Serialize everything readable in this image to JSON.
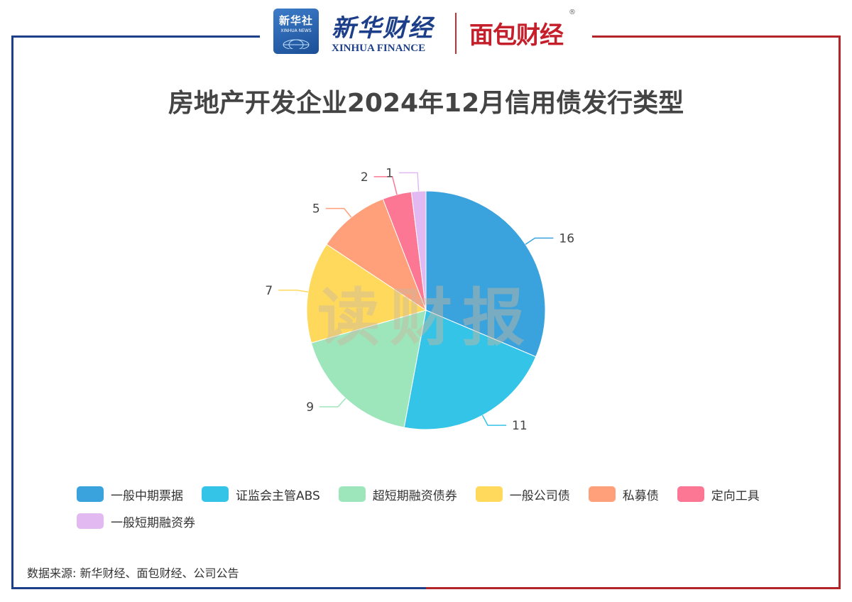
{
  "header": {
    "xinhua_badge_cn": "新华社",
    "xinhua_badge_en": "XINHUA NEWS",
    "xinhua_finance_cn": "新华财经",
    "xinhua_finance_en": "XINHUA FINANCE",
    "mianbao_logo": "面包财经",
    "registered_mark": "®"
  },
  "colors": {
    "frame_blue": "#1d3f8a",
    "frame_red": "#b3242a"
  },
  "watermark": "读财报",
  "chart_data": {
    "type": "pie",
    "title": "房地产开发企业2024年12月信用债发行类型",
    "categories": [
      "一般中期票据",
      "证监会主管ABS",
      "超短期融资债券",
      "一般公司债",
      "私募债",
      "定向工具",
      "一般短期融资券"
    ],
    "values": [
      16,
      11,
      9,
      7,
      5,
      2,
      1
    ],
    "colors": [
      "#3aa2dc",
      "#34c4e8",
      "#9de6bb",
      "#ffd95c",
      "#ffa07a",
      "#fc7794",
      "#e3b9f2"
    ],
    "legend_position": "bottom",
    "start_position": "top, clockwise"
  },
  "source": "数据来源: 新华财经、面包财经、公司公告"
}
